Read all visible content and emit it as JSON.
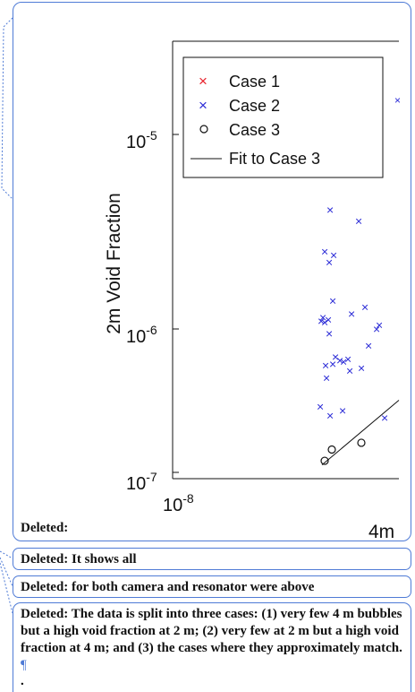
{
  "comments": [
    {
      "text": "Deleted: "
    },
    {
      "text": "Deleted: It shows all"
    },
    {
      "text": "Deleted: for both camera and resonator were above"
    },
    {
      "text": "Deleted: The data is split into three cases: (1) very few 4 m bubbles but a high void fraction at 2 m; (2) very few at 2 m but a high void fraction at 4 m; and (3) the cases where they approximately match. ",
      "pilcrow": "¶",
      "tail": "."
    }
  ],
  "chart_data": {
    "type": "scatter",
    "ylabel": "2m Void Fraction",
    "xlabel": "4m",
    "y_scale": "log",
    "x_scale": "log",
    "ylim": [
      1e-07,
      4e-05
    ],
    "y_ticks": [
      {
        "value": 1e-05,
        "base": "10",
        "exp": "-5"
      },
      {
        "value": 1e-06,
        "base": "10",
        "exp": "-6"
      },
      {
        "value": 1e-07,
        "base": "10",
        "exp": "-7"
      }
    ],
    "x_ticks": [
      {
        "value": 1e-08,
        "base": "10",
        "exp": "-8"
      }
    ],
    "legend_position": "top-right",
    "legend": [
      {
        "label": "Case 1",
        "marker": "x",
        "color": "#e8202a"
      },
      {
        "label": "Case 2",
        "marker": "x",
        "color": "#2b2bd6"
      },
      {
        "label": "Case 3",
        "marker": "o",
        "color": "#111111"
      },
      {
        "label": "Fit to Case 3",
        "marker": "line",
        "color": "#111111"
      }
    ],
    "case2_points_y": [
      4.1e-06,
      3.6e-06,
      2.5e-06,
      2.4e-06,
      2.2e-06,
      1.4e-06,
      1.3e-06,
      1.2e-06,
      1.15e-06,
      1.12e-06,
      1.1e-06,
      1.08e-06,
      1.05e-06,
      1e-06,
      9.5e-07,
      8.2e-07,
      7.2e-07,
      7e-07,
      6.9e-07,
      6.8e-07,
      6.6e-07,
      6.5e-07,
      6.3e-07,
      6.1e-07,
      5.6e-07,
      4e-07,
      3.8e-07,
      3.6e-07,
      3.5e-07
    ],
    "case3_points_y": [
      2.6e-07,
      2.4e-07,
      2.1e-07
    ],
    "fit_y_range": [
      2e-07,
      4.3e-07
    ]
  }
}
